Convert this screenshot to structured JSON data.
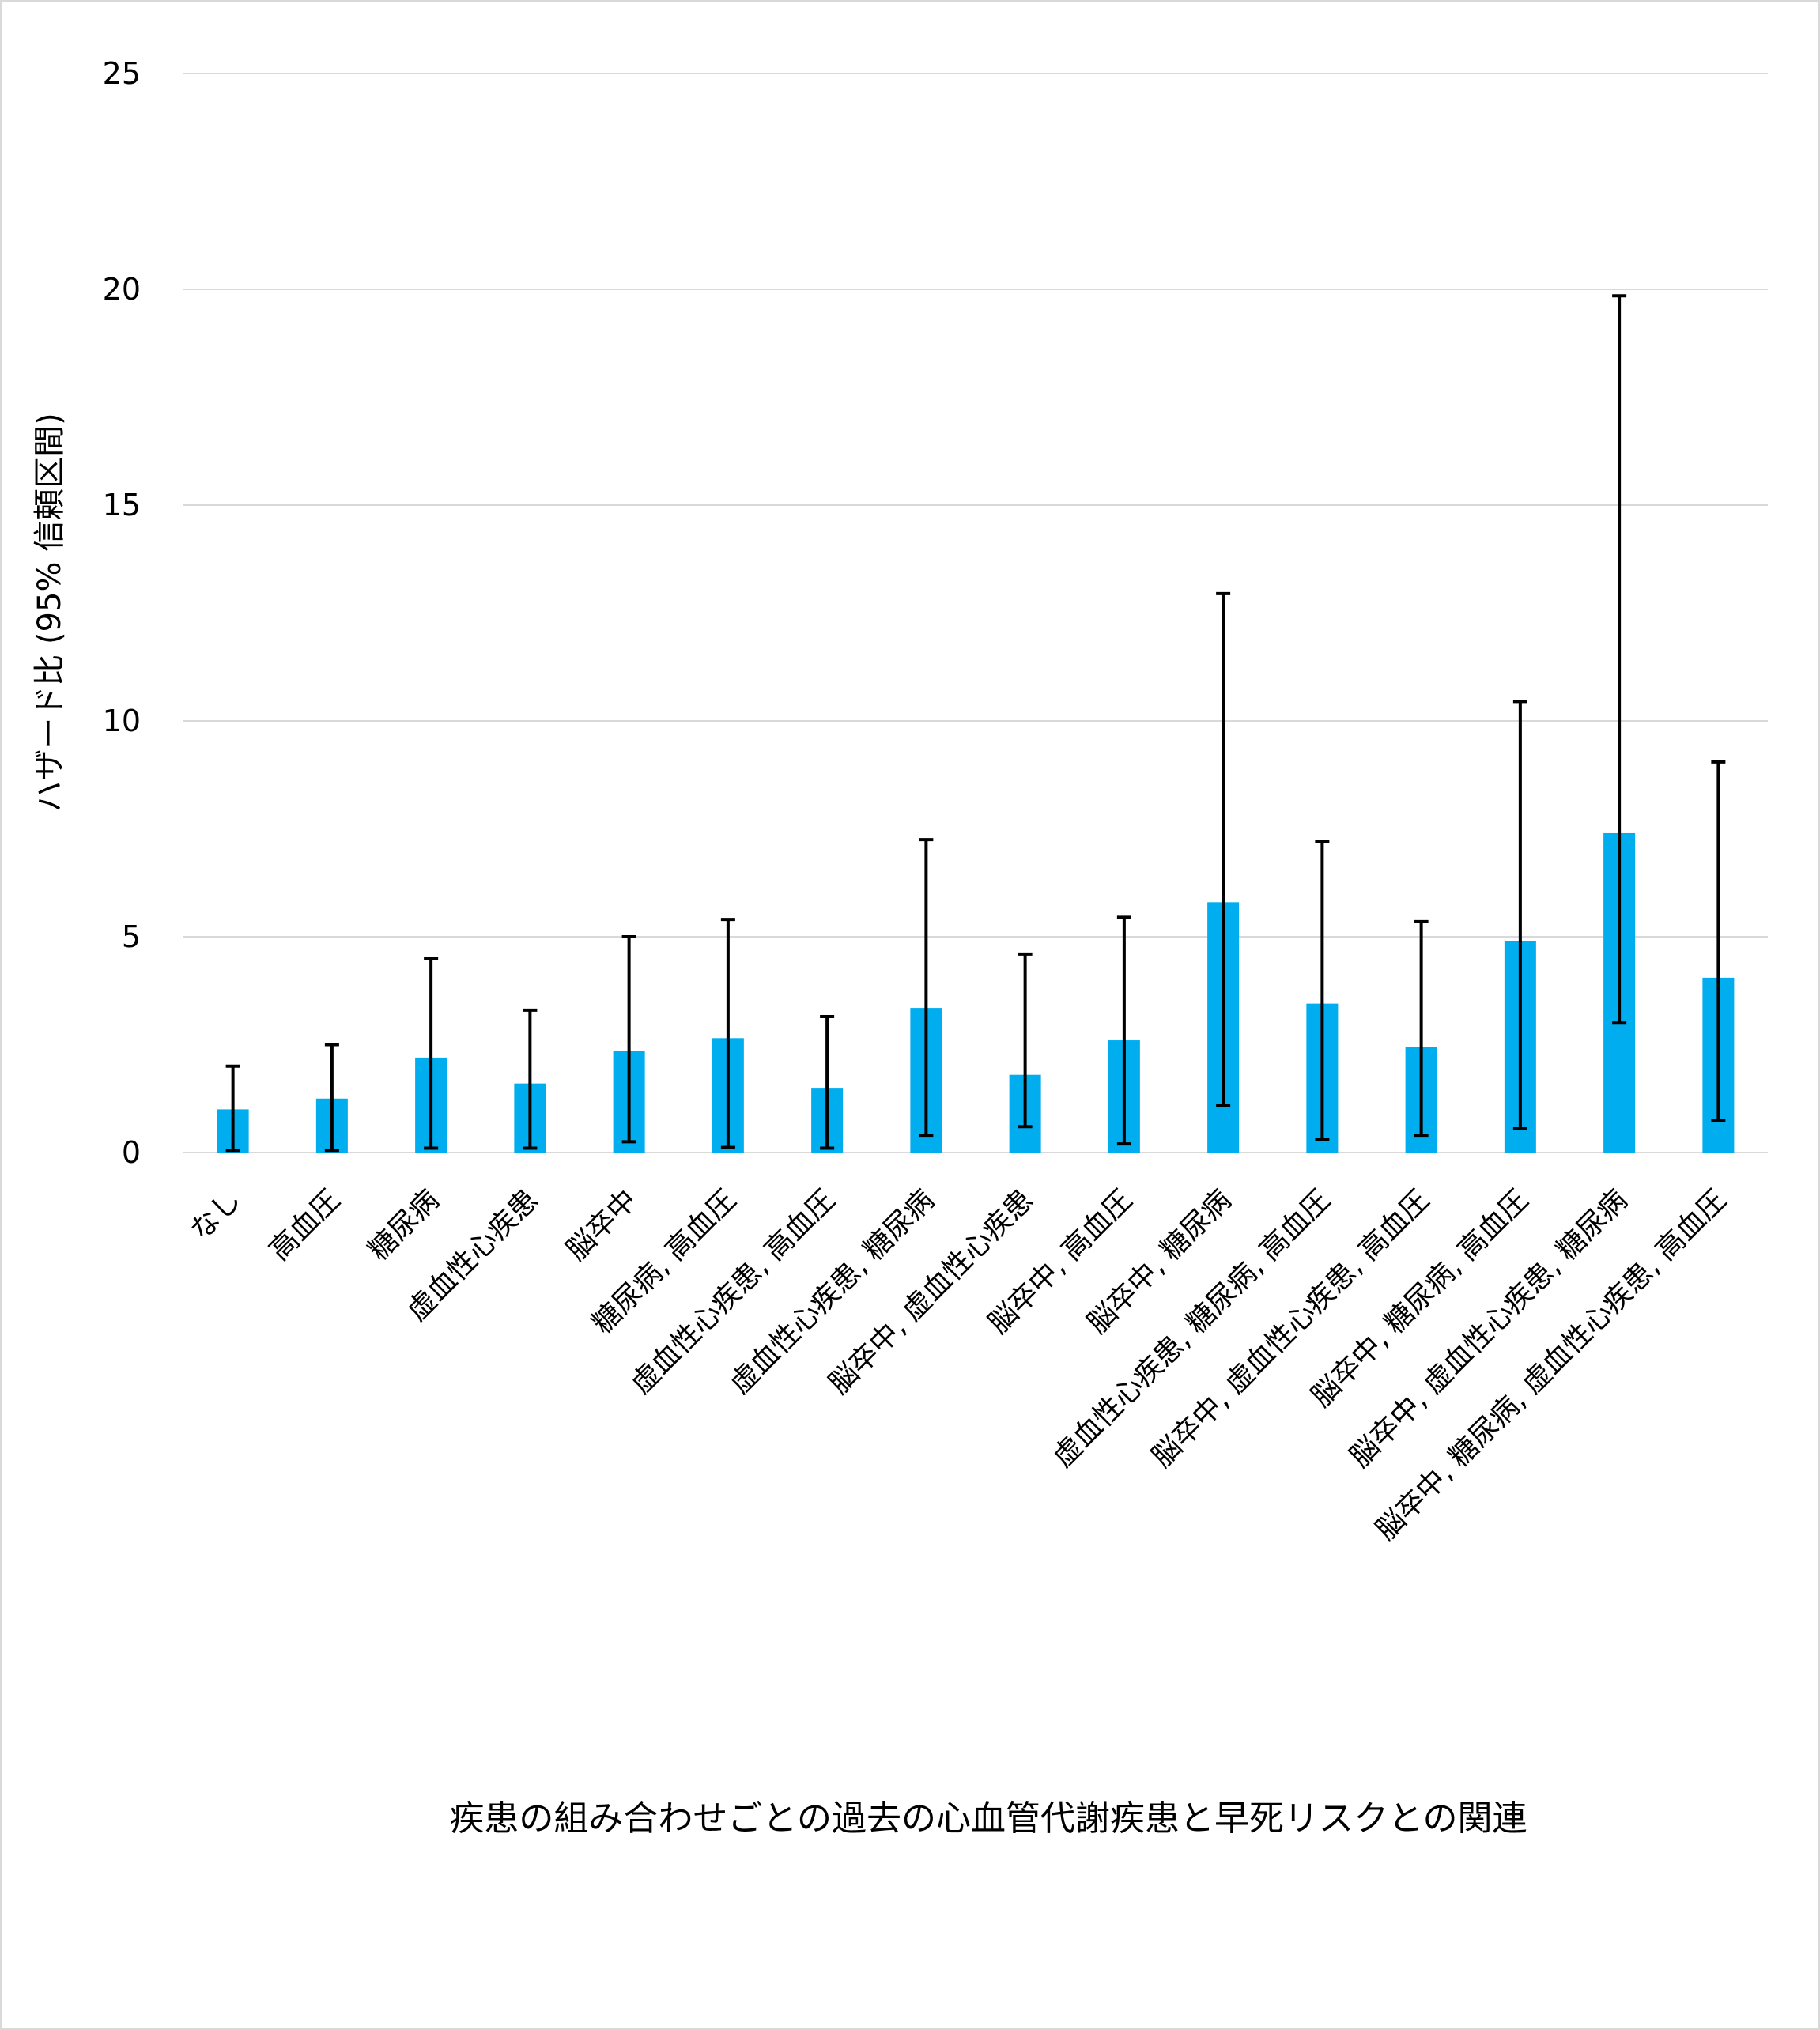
{
  "chart_data": {
    "type": "bar",
    "title": "疾患の組み合わせごとの過去の心血管代謝疾患と早死リスクとの関連",
    "xlabel": "",
    "ylabel": "ハザード比 (95% 信頼区間)",
    "ylim": [
      0,
      25
    ],
    "yticks": [
      "0",
      "5",
      "10",
      "15",
      "20",
      "25"
    ],
    "grid": true,
    "bar_color": "#00AEEF",
    "errorbar_color": "#000000",
    "categories": [
      "なし",
      "高血圧",
      "糖尿病",
      "虚血性心疾患",
      "脳卒中",
      "糖尿病, 高血圧",
      "虚血性心疾患, 高血圧",
      "虚血性心疾患, 糖尿病",
      "脳卒中, 虚血性心疾患",
      "脳卒中, 高血圧",
      "脳卒中, 糖尿病",
      "虚血性心疾患, 糖尿病, 高血圧",
      "脳卒中, 虚血性心疾患, 高血圧",
      "脳卒中, 糖尿病, 高血圧",
      "脳卒中, 虚血性心疾患, 糖尿病",
      "脳卒中, 糖尿病, 虚血性心疾患, 高血圧"
    ],
    "series": [
      {
        "values": [
          1.0,
          1.25,
          2.2,
          1.6,
          2.35,
          2.65,
          1.5,
          3.35,
          1.8,
          2.6,
          5.8,
          3.45,
          2.45,
          4.9,
          7.4,
          4.05
        ],
        "ci_lower": [
          0.05,
          0.05,
          0.1,
          0.1,
          0.25,
          0.12,
          0.1,
          0.4,
          0.6,
          0.2,
          1.1,
          0.3,
          0.4,
          0.55,
          3.0,
          0.75
        ],
        "ci_upper": [
          2.0,
          2.5,
          4.5,
          3.3,
          5.0,
          5.4,
          3.15,
          7.25,
          4.6,
          5.45,
          12.95,
          7.2,
          5.35,
          10.45,
          19.85,
          9.05
        ]
      }
    ]
  }
}
